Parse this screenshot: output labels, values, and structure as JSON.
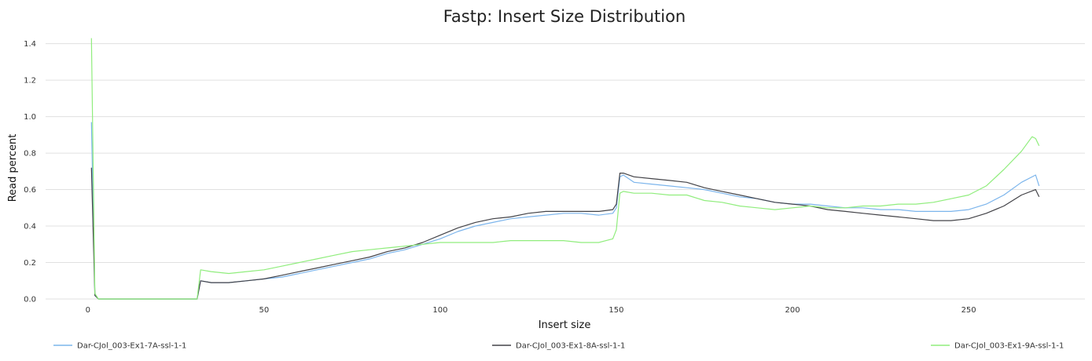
{
  "chart_data": {
    "type": "line",
    "title": "Fastp: Insert Size Distribution",
    "xlabel": "Insert size",
    "ylabel": "Read percent",
    "xlim": [
      -12,
      283
    ],
    "ylim": [
      0,
      1.45
    ],
    "xticks": [
      0,
      50,
      100,
      150,
      200,
      250
    ],
    "yticks": [
      0.0,
      0.2,
      0.4,
      0.6,
      0.8,
      1.0,
      1.2,
      1.4
    ],
    "grid": "horizontal",
    "legend_position": "bottom",
    "series": [
      {
        "name": "Dar-CJol_003-Ex1-7A-ssl-1-1",
        "color": "#7cb5ec",
        "points": [
          [
            1,
            0.97
          ],
          [
            2,
            0.02
          ],
          [
            3,
            0.0
          ],
          [
            31,
            0.0
          ],
          [
            32,
            0.1
          ],
          [
            35,
            0.09
          ],
          [
            40,
            0.09
          ],
          [
            45,
            0.1
          ],
          [
            50,
            0.11
          ],
          [
            55,
            0.12
          ],
          [
            60,
            0.14
          ],
          [
            65,
            0.16
          ],
          [
            70,
            0.18
          ],
          [
            75,
            0.2
          ],
          [
            80,
            0.22
          ],
          [
            85,
            0.25
          ],
          [
            90,
            0.27
          ],
          [
            95,
            0.3
          ],
          [
            100,
            0.33
          ],
          [
            105,
            0.37
          ],
          [
            110,
            0.4
          ],
          [
            115,
            0.42
          ],
          [
            120,
            0.44
          ],
          [
            125,
            0.45
          ],
          [
            130,
            0.46
          ],
          [
            135,
            0.47
          ],
          [
            140,
            0.47
          ],
          [
            145,
            0.46
          ],
          [
            149,
            0.47
          ],
          [
            150,
            0.5
          ],
          [
            151,
            0.67
          ],
          [
            152,
            0.68
          ],
          [
            155,
            0.64
          ],
          [
            160,
            0.63
          ],
          [
            165,
            0.62
          ],
          [
            170,
            0.61
          ],
          [
            175,
            0.6
          ],
          [
            180,
            0.58
          ],
          [
            185,
            0.56
          ],
          [
            190,
            0.55
          ],
          [
            195,
            0.53
          ],
          [
            200,
            0.52
          ],
          [
            205,
            0.52
          ],
          [
            210,
            0.51
          ],
          [
            215,
            0.5
          ],
          [
            220,
            0.5
          ],
          [
            225,
            0.49
          ],
          [
            230,
            0.49
          ],
          [
            235,
            0.48
          ],
          [
            240,
            0.48
          ],
          [
            245,
            0.48
          ],
          [
            250,
            0.49
          ],
          [
            255,
            0.52
          ],
          [
            260,
            0.57
          ],
          [
            265,
            0.64
          ],
          [
            269,
            0.68
          ],
          [
            270,
            0.62
          ]
        ]
      },
      {
        "name": "Dar-CJol_003-Ex1-8A-ssl-1-1",
        "color": "#434348",
        "points": [
          [
            1,
            0.72
          ],
          [
            2,
            0.02
          ],
          [
            3,
            0.0
          ],
          [
            31,
            0.0
          ],
          [
            32,
            0.1
          ],
          [
            35,
            0.09
          ],
          [
            40,
            0.09
          ],
          [
            45,
            0.1
          ],
          [
            50,
            0.11
          ],
          [
            55,
            0.13
          ],
          [
            60,
            0.15
          ],
          [
            65,
            0.17
          ],
          [
            70,
            0.19
          ],
          [
            75,
            0.21
          ],
          [
            80,
            0.23
          ],
          [
            85,
            0.26
          ],
          [
            90,
            0.28
          ],
          [
            95,
            0.31
          ],
          [
            100,
            0.35
          ],
          [
            105,
            0.39
          ],
          [
            110,
            0.42
          ],
          [
            115,
            0.44
          ],
          [
            120,
            0.45
          ],
          [
            125,
            0.47
          ],
          [
            130,
            0.48
          ],
          [
            135,
            0.48
          ],
          [
            140,
            0.48
          ],
          [
            145,
            0.48
          ],
          [
            149,
            0.49
          ],
          [
            150,
            0.52
          ],
          [
            151,
            0.69
          ],
          [
            152,
            0.69
          ],
          [
            155,
            0.67
          ],
          [
            160,
            0.66
          ],
          [
            165,
            0.65
          ],
          [
            170,
            0.64
          ],
          [
            175,
            0.61
          ],
          [
            180,
            0.59
          ],
          [
            185,
            0.57
          ],
          [
            190,
            0.55
          ],
          [
            195,
            0.53
          ],
          [
            200,
            0.52
          ],
          [
            205,
            0.51
          ],
          [
            210,
            0.49
          ],
          [
            215,
            0.48
          ],
          [
            220,
            0.47
          ],
          [
            225,
            0.46
          ],
          [
            230,
            0.45
          ],
          [
            235,
            0.44
          ],
          [
            240,
            0.43
          ],
          [
            245,
            0.43
          ],
          [
            250,
            0.44
          ],
          [
            255,
            0.47
          ],
          [
            260,
            0.51
          ],
          [
            265,
            0.57
          ],
          [
            269,
            0.6
          ],
          [
            270,
            0.56
          ]
        ]
      },
      {
        "name": "Dar-CJol_003-Ex1-9A-ssl-1-1",
        "color": "#90ed7d",
        "points": [
          [
            1,
            1.43
          ],
          [
            2,
            0.03
          ],
          [
            3,
            0.0
          ],
          [
            31,
            0.0
          ],
          [
            32,
            0.16
          ],
          [
            35,
            0.15
          ],
          [
            40,
            0.14
          ],
          [
            45,
            0.15
          ],
          [
            50,
            0.16
          ],
          [
            55,
            0.18
          ],
          [
            60,
            0.2
          ],
          [
            65,
            0.22
          ],
          [
            70,
            0.24
          ],
          [
            75,
            0.26
          ],
          [
            80,
            0.27
          ],
          [
            85,
            0.28
          ],
          [
            90,
            0.29
          ],
          [
            95,
            0.3
          ],
          [
            100,
            0.31
          ],
          [
            105,
            0.31
          ],
          [
            110,
            0.31
          ],
          [
            115,
            0.31
          ],
          [
            120,
            0.32
          ],
          [
            125,
            0.32
          ],
          [
            130,
            0.32
          ],
          [
            135,
            0.32
          ],
          [
            140,
            0.31
          ],
          [
            145,
            0.31
          ],
          [
            149,
            0.33
          ],
          [
            150,
            0.38
          ],
          [
            151,
            0.58
          ],
          [
            152,
            0.59
          ],
          [
            155,
            0.58
          ],
          [
            160,
            0.58
          ],
          [
            165,
            0.57
          ],
          [
            170,
            0.57
          ],
          [
            175,
            0.54
          ],
          [
            180,
            0.53
          ],
          [
            185,
            0.51
          ],
          [
            190,
            0.5
          ],
          [
            195,
            0.49
          ],
          [
            200,
            0.5
          ],
          [
            205,
            0.51
          ],
          [
            210,
            0.5
          ],
          [
            215,
            0.5
          ],
          [
            220,
            0.51
          ],
          [
            225,
            0.51
          ],
          [
            230,
            0.52
          ],
          [
            235,
            0.52
          ],
          [
            240,
            0.53
          ],
          [
            245,
            0.55
          ],
          [
            250,
            0.57
          ],
          [
            255,
            0.62
          ],
          [
            260,
            0.71
          ],
          [
            265,
            0.81
          ],
          [
            268,
            0.89
          ],
          [
            269,
            0.88
          ],
          [
            270,
            0.84
          ]
        ]
      }
    ]
  }
}
